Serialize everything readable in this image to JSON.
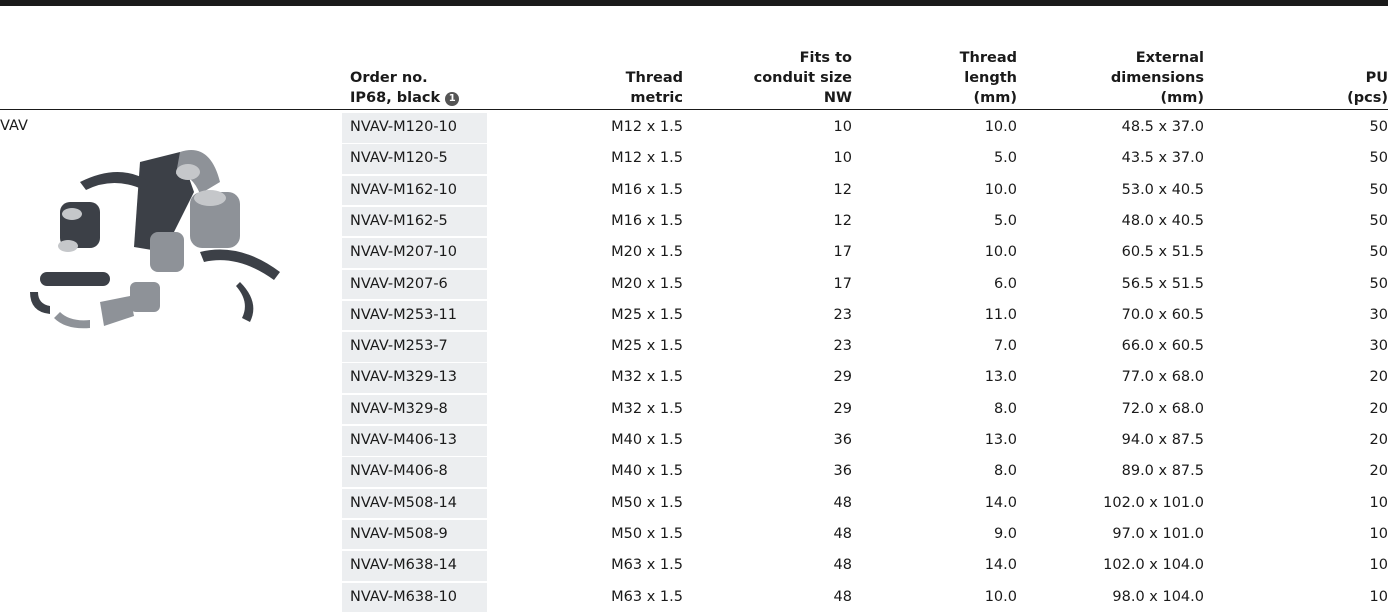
{
  "table": {
    "group_label": "VAV",
    "note_marker": "1",
    "headers": [
      [
        "Order no.",
        "IP68, black"
      ],
      [
        "Thread",
        "metric"
      ],
      [
        "Fits to",
        "conduit size",
        "NW"
      ],
      [
        "Thread",
        "length",
        "(mm)"
      ],
      [
        "External",
        "dimensions",
        "(mm)"
      ],
      [
        "PU",
        "(pcs)"
      ]
    ],
    "rows": [
      [
        "NVAV-M120-10",
        "M12 x 1.5",
        "10",
        "10.0",
        "48.5 x 37.0",
        "50"
      ],
      [
        "NVAV-M120-5",
        "M12 x 1.5",
        "10",
        "5.0",
        "43.5 x 37.0",
        "50"
      ],
      [
        "NVAV-M162-10",
        "M16 x 1.5",
        "12",
        "10.0",
        "53.0 x 40.5",
        "50"
      ],
      [
        "NVAV-M162-5",
        "M16 x 1.5",
        "12",
        "5.0",
        "48.0 x 40.5",
        "50"
      ],
      [
        "NVAV-M207-10",
        "M20 x 1.5",
        "17",
        "10.0",
        "60.5 x 51.5",
        "50"
      ],
      [
        "NVAV-M207-6",
        "M20 x 1.5",
        "17",
        "6.0",
        "56.5 x 51.5",
        "50"
      ],
      [
        "NVAV-M253-11",
        "M25 x 1.5",
        "23",
        "11.0",
        "70.0 x 60.5",
        "30"
      ],
      [
        "NVAV-M253-7",
        "M25 x 1.5",
        "23",
        "7.0",
        "66.0 x 60.5",
        "30"
      ],
      [
        "NVAV-M329-13",
        "M32 x 1.5",
        "29",
        "13.0",
        "77.0 x 68.0",
        "20"
      ],
      [
        "NVAV-M329-8",
        "M32 x 1.5",
        "29",
        "8.0",
        "72.0 x 68.0",
        "20"
      ],
      [
        "NVAV-M406-13",
        "M40 x 1.5",
        "36",
        "13.0",
        "94.0 x 87.5",
        "20"
      ],
      [
        "NVAV-M406-8",
        "M40 x 1.5",
        "36",
        "8.0",
        "89.0 x 87.5",
        "20"
      ],
      [
        "NVAV-M508-14",
        "M50 x 1.5",
        "48",
        "14.0",
        "102.0 x 101.0",
        "10"
      ],
      [
        "NVAV-M508-9",
        "M50 x 1.5",
        "48",
        "9.0",
        "97.0 x 101.0",
        "10"
      ],
      [
        "NVAV-M638-14",
        "M63 x 1.5",
        "48",
        "14.0",
        "102.0 x 104.0",
        "10"
      ],
      [
        "NVAV-M638-10",
        "M63 x 1.5",
        "48",
        "10.0",
        "98.0 x 104.0",
        "10"
      ]
    ]
  }
}
